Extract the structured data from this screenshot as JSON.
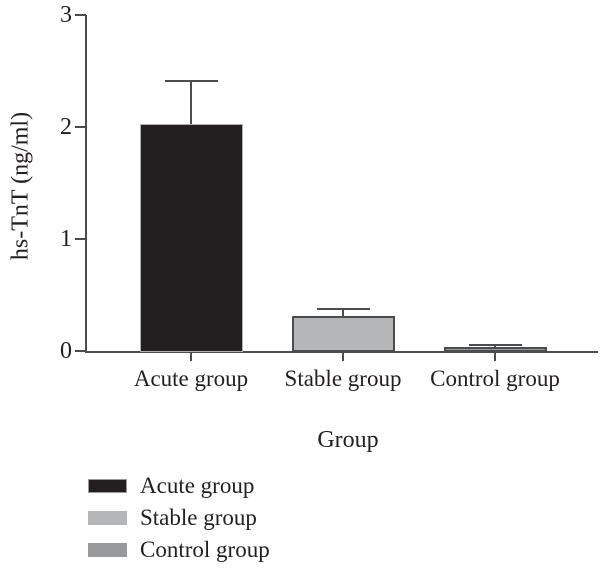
{
  "chart_data": {
    "type": "bar",
    "title": "",
    "xlabel": "Group",
    "ylabel": "hs-TnT (ng/ml)",
    "categories": [
      "Acute group",
      "Stable group",
      "Control group"
    ],
    "values": [
      2.03,
      0.31,
      0.04
    ],
    "error_upper": [
      0.39,
      0.07,
      0.02
    ],
    "yticks": [
      0,
      1,
      2,
      3
    ],
    "ylim": [
      0,
      3
    ],
    "grid": false,
    "bar_colors": [
      "#231f20",
      "#b5b6b8",
      "#97999b"
    ],
    "axis_color": "#4b4c4e",
    "legend_position": "bottom-left",
    "legend": [
      {
        "label": "Acute group",
        "color": "#231f20"
      },
      {
        "label": "Stable group",
        "color": "#b5b6b8"
      },
      {
        "label": "Control group",
        "color": "#97999b"
      }
    ]
  }
}
